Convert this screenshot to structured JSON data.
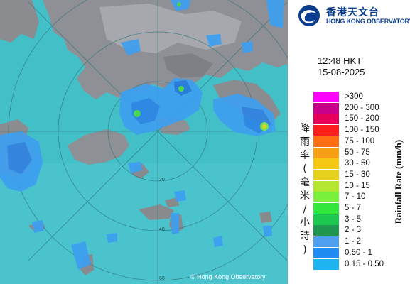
{
  "logo": {
    "name_cn": "香港天文台",
    "name_en": "HONG KONG OBSERVATORY",
    "icon": "hko-swirl-logo"
  },
  "timestamp": {
    "time": "12:48 HKT",
    "date": "15-08-2025"
  },
  "legend": {
    "title_cn": "降雨率(毫米/小時)",
    "title_en": "Rainfall Rate (mm/h)",
    "items": [
      {
        "label": ">300",
        "color": "#ff00ff"
      },
      {
        "label": "200 - 300",
        "color": "#c8008c"
      },
      {
        "label": "150 - 200",
        "color": "#e6005a"
      },
      {
        "label": "100 - 150",
        "color": "#ff1e1e"
      },
      {
        "label": "75 - 100",
        "color": "#ff6e14"
      },
      {
        "label": "50 - 75",
        "color": "#f5a014"
      },
      {
        "label": "30 - 50",
        "color": "#f5c814"
      },
      {
        "label": "15 - 30",
        "color": "#e6d21e"
      },
      {
        "label": "10 - 15",
        "color": "#b4e632"
      },
      {
        "label": "7 - 10",
        "color": "#78f03c"
      },
      {
        "label": "5 - 7",
        "color": "#32e63c"
      },
      {
        "label": "3 - 5",
        "color": "#1ec850"
      },
      {
        "label": "2 - 3",
        "color": "#1e9650"
      },
      {
        "label": "1 - 2",
        "color": "#50a0f0"
      },
      {
        "label": "0.50 - 1",
        "color": "#1e8cf0"
      },
      {
        "label": "0.15 - 0.50",
        "color": "#1eb4f0"
      }
    ]
  },
  "map": {
    "copyright": "© Hong Kong Observatory",
    "range_rings": [
      "20",
      "40",
      "60"
    ]
  }
}
